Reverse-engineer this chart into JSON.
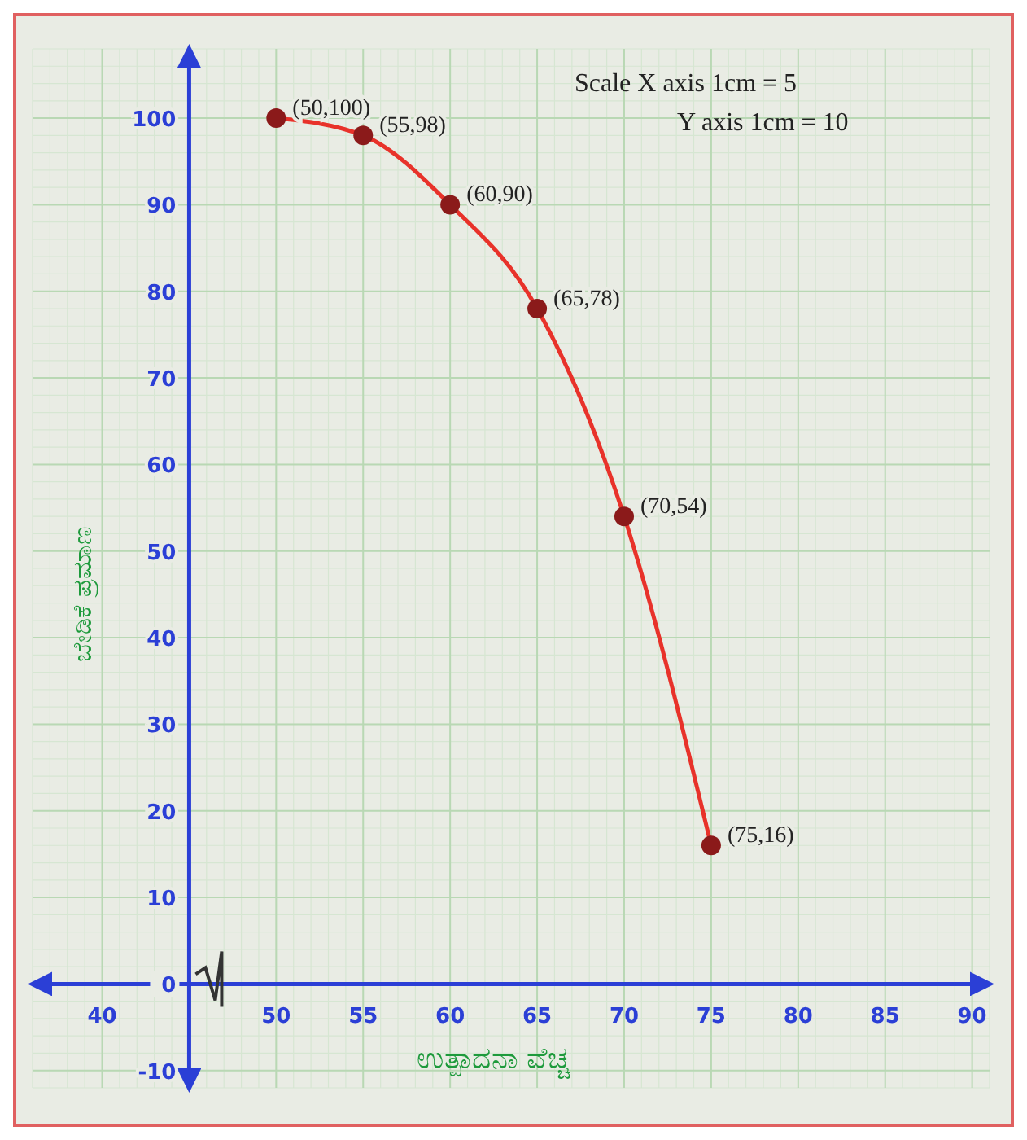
{
  "chart_data": {
    "type": "line",
    "xlabel": "ಉತ್ಪಾದನಾ ವೆಚ್ಚ",
    "ylabel": "ಬೇಡಿಕೆ ಪ್ರಮಾಣ",
    "x": [
      50,
      55,
      60,
      65,
      70,
      75
    ],
    "series": [
      {
        "color": "#e8322a",
        "values": [
          100,
          98,
          90,
          78,
          54,
          16
        ]
      }
    ],
    "xlim": [
      36,
      91
    ],
    "xticks": [
      40,
      50,
      55,
      60,
      65,
      70,
      75,
      80,
      85,
      90
    ],
    "ylim": [
      -12,
      108
    ],
    "yticks": [
      -10,
      0,
      10,
      20,
      30,
      40,
      50,
      60,
      70,
      80,
      90,
      100
    ],
    "grid": true,
    "marker": "circle",
    "line_style": "solid",
    "annotations": [
      "Scale  X axis 1cm = 5",
      "Y axis 1cm = 10",
      {
        "text": "(50,100)",
        "x": 50,
        "y": 100
      },
      {
        "text": "(55,98)",
        "x": 55,
        "y": 98
      },
      {
        "text": "(60,90)",
        "x": 60,
        "y": 90
      },
      {
        "text": "(65,78)",
        "x": 65,
        "y": 78
      },
      {
        "text": "(70,54)",
        "x": 70,
        "y": 54
      },
      {
        "text": "(75,16)",
        "x": 75,
        "y": 16
      }
    ]
  }
}
